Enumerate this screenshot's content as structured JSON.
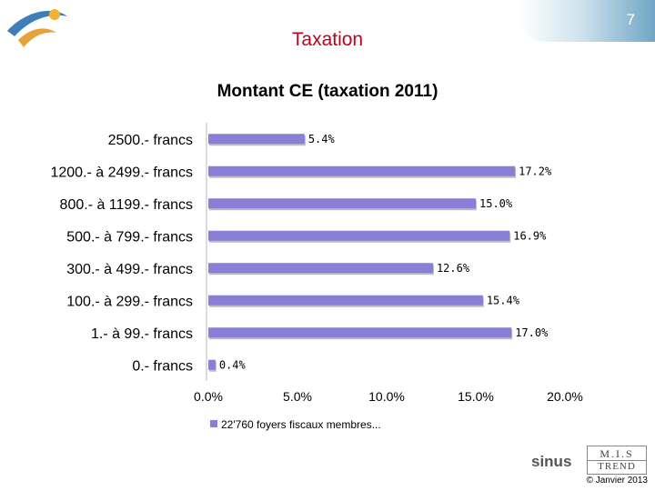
{
  "slide": {
    "number": "7",
    "title": "Taxation",
    "brand": "sinus",
    "partner_top": "M.I.S",
    "partner_bottom": "TREND",
    "copyright": "© Janvier 2013"
  },
  "colors": {
    "bar": "#8a7fd6",
    "title": "#c0001c"
  },
  "chart_data": {
    "type": "bar",
    "orientation": "horizontal",
    "title": "Montant CE (taxation 2011)",
    "categories": [
      "2500.- francs",
      "1200.- à 2499.- francs",
      "800.- à 1199.- francs",
      "500.- à 799.- francs",
      "300.- à 499.- francs",
      "100.- à 299.- francs",
      "1.- à 99.- francs",
      "0.- francs"
    ],
    "values": [
      5.4,
      17.2,
      15.0,
      16.9,
      12.6,
      15.4,
      17.0,
      0.4
    ],
    "value_labels": [
      "5.4%",
      "17.2%",
      "15.0%",
      "16.9%",
      "12.6%",
      "15.4%",
      "17.0%",
      "0.4%"
    ],
    "xlim": [
      0,
      20
    ],
    "xticks": [
      0,
      5,
      10,
      15,
      20
    ],
    "xtick_labels": [
      "0.0%",
      "5.0%",
      "10.0%",
      "15.0%",
      "20.0%"
    ],
    "grid": false,
    "legend": {
      "position": "bottom",
      "entries": [
        "22'760 foyers fiscaux membres..."
      ]
    }
  }
}
